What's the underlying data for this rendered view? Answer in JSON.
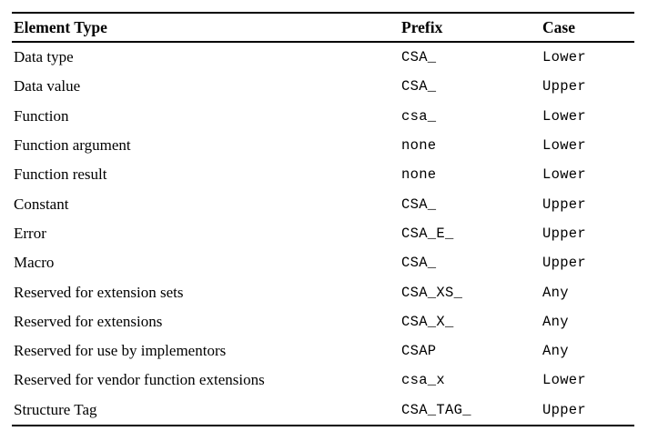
{
  "table": {
    "columns": [
      {
        "key": "element_type",
        "label": "Element Type"
      },
      {
        "key": "prefix",
        "label": "Prefix"
      },
      {
        "key": "case",
        "label": "Case"
      }
    ],
    "rows": [
      {
        "element_type": "Data type",
        "prefix": "CSA_",
        "case": "Lower"
      },
      {
        "element_type": "Data value",
        "prefix": "CSA_",
        "case": "Upper"
      },
      {
        "element_type": "Function",
        "prefix": "csa_",
        "case": "Lower"
      },
      {
        "element_type": "Function argument",
        "prefix": "none",
        "case": "Lower"
      },
      {
        "element_type": "Function result",
        "prefix": "none",
        "case": "Lower"
      },
      {
        "element_type": "Constant",
        "prefix": "CSA_",
        "case": "Upper"
      },
      {
        "element_type": "Error",
        "prefix": "CSA_E_",
        "case": "Upper"
      },
      {
        "element_type": "Macro",
        "prefix": "CSA_",
        "case": "Upper"
      },
      {
        "element_type": "Reserved for extension sets",
        "prefix": "CSA_XS_",
        "case": "Any"
      },
      {
        "element_type": "Reserved for extensions",
        "prefix": "CSA_X_",
        "case": "Any"
      },
      {
        "element_type": "Reserved for use by implementors",
        "prefix": "CSAP",
        "case": "Any"
      },
      {
        "element_type": "Reserved for vendor function extensions",
        "prefix": "csa_x",
        "case": "Lower"
      },
      {
        "element_type": "Structure Tag",
        "prefix": "CSA_TAG_",
        "case": "Upper"
      }
    ]
  }
}
